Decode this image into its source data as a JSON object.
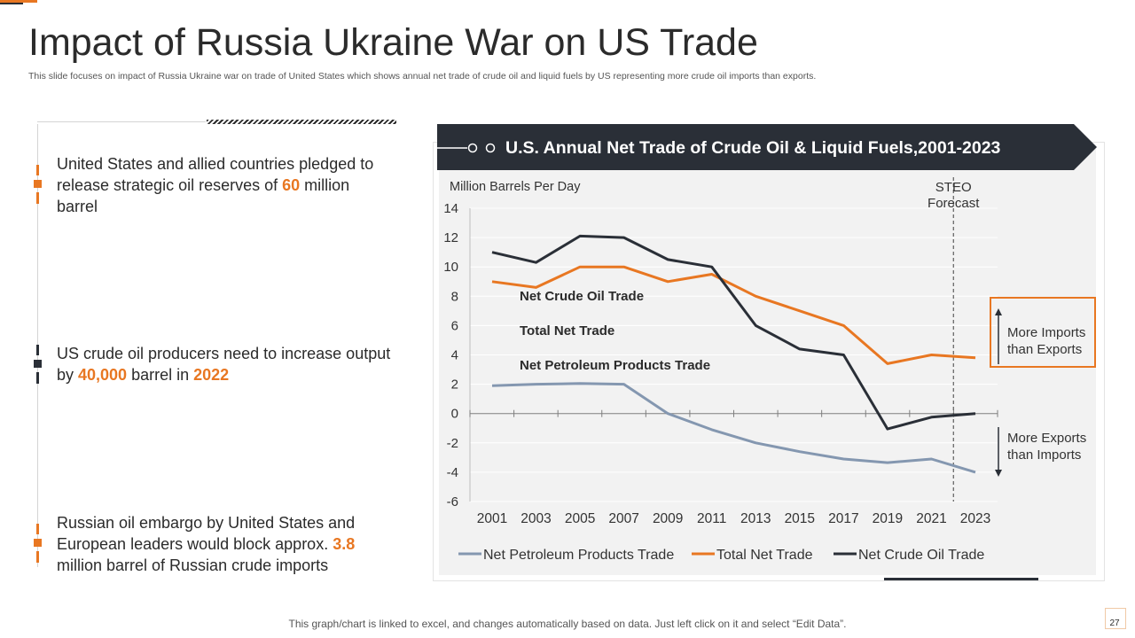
{
  "slide": {
    "title": "Impact of Russia Ukraine War on US Trade",
    "subtitle": "This slide focuses on impact of Russia Ukraine war on trade of United States which shows annual net trade of crude oil and liquid fuels by US representing more crude oil imports than exports.",
    "footer": "This graph/chart is linked to excel, and changes automatically based on data. Just left click on it and select “Edit Data”.",
    "page_number": "27"
  },
  "bullets": [
    {
      "pre": "United States and allied countries pledged to release strategic oil reserves of ",
      "hl1": "60",
      "mid": " million barrel",
      "hl2": "",
      "post": ""
    },
    {
      "pre": "US crude oil producers need to increase output by ",
      "hl1": "40,000",
      "mid": " barrel in ",
      "hl2": "2022",
      "post": ""
    },
    {
      "pre": "Russian oil embargo by United States and European leaders would block approx. ",
      "hl1": "3.8",
      "mid": " million barrel of Russian crude imports",
      "hl2": "",
      "post": ""
    }
  ],
  "callouts": {
    "imports": "More Imports than Exports",
    "exports": "More Exports than Imports"
  },
  "colors": {
    "accent": "#e87722",
    "dark": "#2a2f37",
    "gray_series": "#8497b0"
  },
  "chart_data": {
    "type": "line",
    "title": "U.S. Annual Net Trade of Crude Oil & Liquid Fuels,2001-2023",
    "ylabel": "Million Barrels Per Day",
    "xlabel": "",
    "ylim": [
      -6,
      14
    ],
    "yticks": [
      -6,
      -4,
      -2,
      0,
      2,
      4,
      6,
      8,
      10,
      12,
      14
    ],
    "x": [
      2001,
      2003,
      2005,
      2007,
      2009,
      2011,
      2013,
      2015,
      2017,
      2019,
      2021,
      2023
    ],
    "xtick_labels": [
      "2001",
      "2003",
      "2005",
      "2007",
      "2009",
      "2011",
      "2013",
      "2015",
      "2017",
      "2019",
      "2021",
      "2023"
    ],
    "forecast_marker": {
      "x": 2022,
      "label_line1": "STEO",
      "label_line2": "Forecast"
    },
    "series": [
      {
        "name": "Net Petroleum Products Trade",
        "label_in_plot": "Net Petroleum Products Trade",
        "color": "#8497b0",
        "values": [
          1.9,
          2.0,
          2.05,
          2.0,
          0.0,
          -1.1,
          -2.0,
          -2.6,
          -3.1,
          -3.35,
          -3.1,
          -4.0
        ]
      },
      {
        "name": "Total Net Trade",
        "label_in_plot": "Total Net Trade",
        "color": "#e87722",
        "values": [
          9.0,
          8.6,
          10.0,
          10.0,
          9.0,
          9.5,
          8.0,
          7.0,
          6.0,
          3.4,
          4.0,
          3.8
        ]
      },
      {
        "name": "Net Crude Oil Trade",
        "label_in_plot": "Net Crude Oil Trade",
        "color": "#2a2f37",
        "values": [
          11.0,
          10.3,
          12.1,
          12.0,
          10.5,
          10.0,
          6.0,
          4.4,
          4.0,
          -1.05,
          -0.25,
          0.0
        ]
      }
    ],
    "legend": [
      "Net Petroleum Products Trade",
      "Total Net Trade",
      "Net Crude Oil Trade"
    ],
    "legend_position": "bottom"
  }
}
